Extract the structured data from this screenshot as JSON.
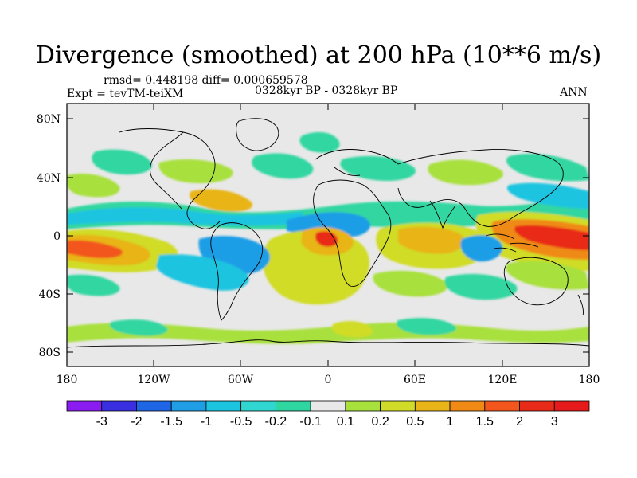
{
  "title": "Divergence (smoothed) at 200 hPa (10**6 m/s)",
  "stats_line": "rmsd= 0.448198 diff= 0.000659578",
  "experiment": "Expt = tevTM-teiXM",
  "period": "0328kyr BP - 0328kyr BP",
  "season": "ANN",
  "lat_ticks": [
    "80N",
    "40N",
    "0",
    "40S",
    "80S"
  ],
  "lon_ticks": [
    "180",
    "120W",
    "60W",
    "0",
    "60E",
    "120E",
    "180"
  ],
  "colorbar": {
    "labels": [
      "-3",
      "-2",
      "-1.5",
      "-1",
      "-0.5",
      "-0.2",
      "-0.1",
      "0.1",
      "0.2",
      "0.5",
      "1",
      "1.5",
      "2",
      "3"
    ],
    "colors": [
      "#8a1cf2",
      "#3a2fe0",
      "#1f66e6",
      "#1f9ee6",
      "#1cc4e0",
      "#2fd7d0",
      "#30d6a0",
      "#e8e8e8",
      "#a8e03c",
      "#d0dc28",
      "#e8b418",
      "#f08a14",
      "#f2561c",
      "#e82a18",
      "#e61a1a"
    ]
  }
}
